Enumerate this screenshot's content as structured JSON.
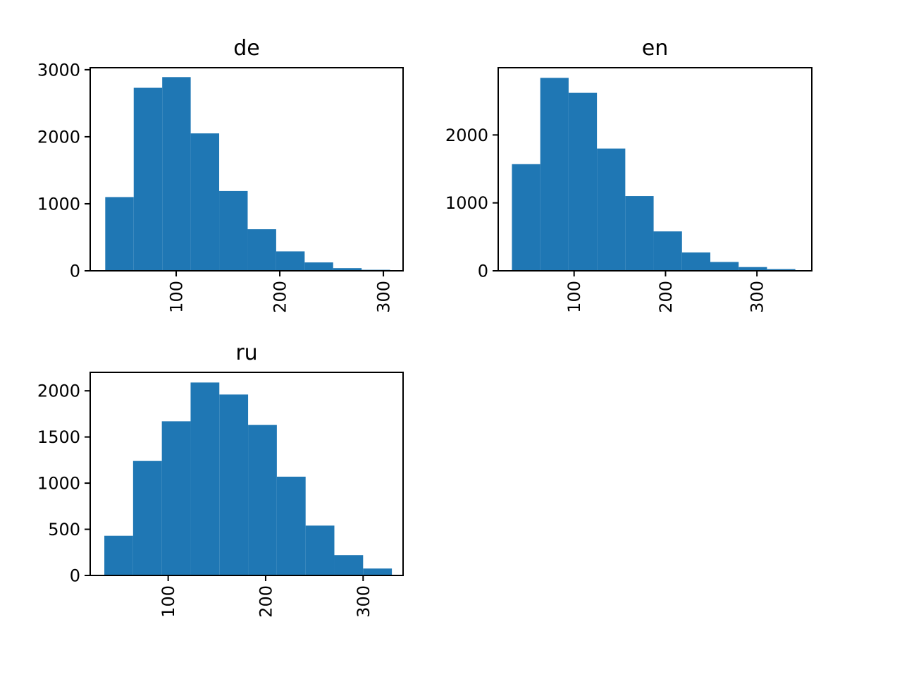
{
  "chart_data": [
    {
      "type": "bar",
      "title": "de",
      "xlabel": "",
      "ylabel": "",
      "bar_color": "#1f77b4",
      "grid": false,
      "x_ticks": [
        100,
        200,
        300
      ],
      "y_ticks": [
        0,
        1000,
        2000,
        3000
      ],
      "xlim": [
        17,
        319
      ],
      "ylim": [
        0,
        3030
      ],
      "bins": [
        {
          "x0": 31.5,
          "x1": 59.0,
          "value": 1100
        },
        {
          "x0": 59.0,
          "x1": 86.5,
          "value": 2730
        },
        {
          "x0": 86.5,
          "x1": 114.0,
          "value": 2890
        },
        {
          "x0": 114.0,
          "x1": 141.5,
          "value": 2050
        },
        {
          "x0": 141.5,
          "x1": 169.0,
          "value": 1190
        },
        {
          "x0": 169.0,
          "x1": 196.5,
          "value": 620
        },
        {
          "x0": 196.5,
          "x1": 224.0,
          "value": 290
        },
        {
          "x0": 224.0,
          "x1": 251.5,
          "value": 125
        },
        {
          "x0": 251.5,
          "x1": 279.0,
          "value": 40
        },
        {
          "x0": 279.0,
          "x1": 306.5,
          "value": 15
        }
      ]
    },
    {
      "type": "bar",
      "title": "en",
      "xlabel": "",
      "ylabel": "",
      "bar_color": "#1f77b4",
      "grid": false,
      "x_ticks": [
        100,
        200,
        300
      ],
      "y_ticks": [
        0,
        1000,
        2000
      ],
      "xlim": [
        17,
        360
      ],
      "ylim": [
        0,
        2990
      ],
      "bins": [
        {
          "x0": 32,
          "x1": 63,
          "value": 1570
        },
        {
          "x0": 63,
          "x1": 94,
          "value": 2840
        },
        {
          "x0": 94,
          "x1": 125,
          "value": 2620
        },
        {
          "x0": 125,
          "x1": 156,
          "value": 1800
        },
        {
          "x0": 156,
          "x1": 187,
          "value": 1100
        },
        {
          "x0": 187,
          "x1": 218,
          "value": 580
        },
        {
          "x0": 218,
          "x1": 249,
          "value": 270
        },
        {
          "x0": 249,
          "x1": 280,
          "value": 130
        },
        {
          "x0": 280,
          "x1": 311,
          "value": 55
        },
        {
          "x0": 311,
          "x1": 342,
          "value": 25
        }
      ]
    },
    {
      "type": "bar",
      "title": "ru",
      "xlabel": "",
      "ylabel": "",
      "bar_color": "#1f77b4",
      "grid": false,
      "x_ticks": [
        100,
        200,
        300
      ],
      "y_ticks": [
        0,
        500,
        1000,
        1500,
        2000
      ],
      "xlim": [
        20,
        341
      ],
      "ylim": [
        0,
        2200
      ],
      "bins": [
        {
          "x0": 34.5,
          "x1": 64.0,
          "value": 430
        },
        {
          "x0": 64.0,
          "x1": 93.5,
          "value": 1240
        },
        {
          "x0": 93.5,
          "x1": 123.0,
          "value": 1670
        },
        {
          "x0": 123.0,
          "x1": 152.5,
          "value": 2090
        },
        {
          "x0": 152.5,
          "x1": 182.0,
          "value": 1960
        },
        {
          "x0": 182.0,
          "x1": 211.5,
          "value": 1630
        },
        {
          "x0": 211.5,
          "x1": 241.0,
          "value": 1070
        },
        {
          "x0": 241.0,
          "x1": 270.5,
          "value": 540
        },
        {
          "x0": 270.5,
          "x1": 300.0,
          "value": 220
        },
        {
          "x0": 300.0,
          "x1": 329.5,
          "value": 75
        }
      ]
    }
  ]
}
